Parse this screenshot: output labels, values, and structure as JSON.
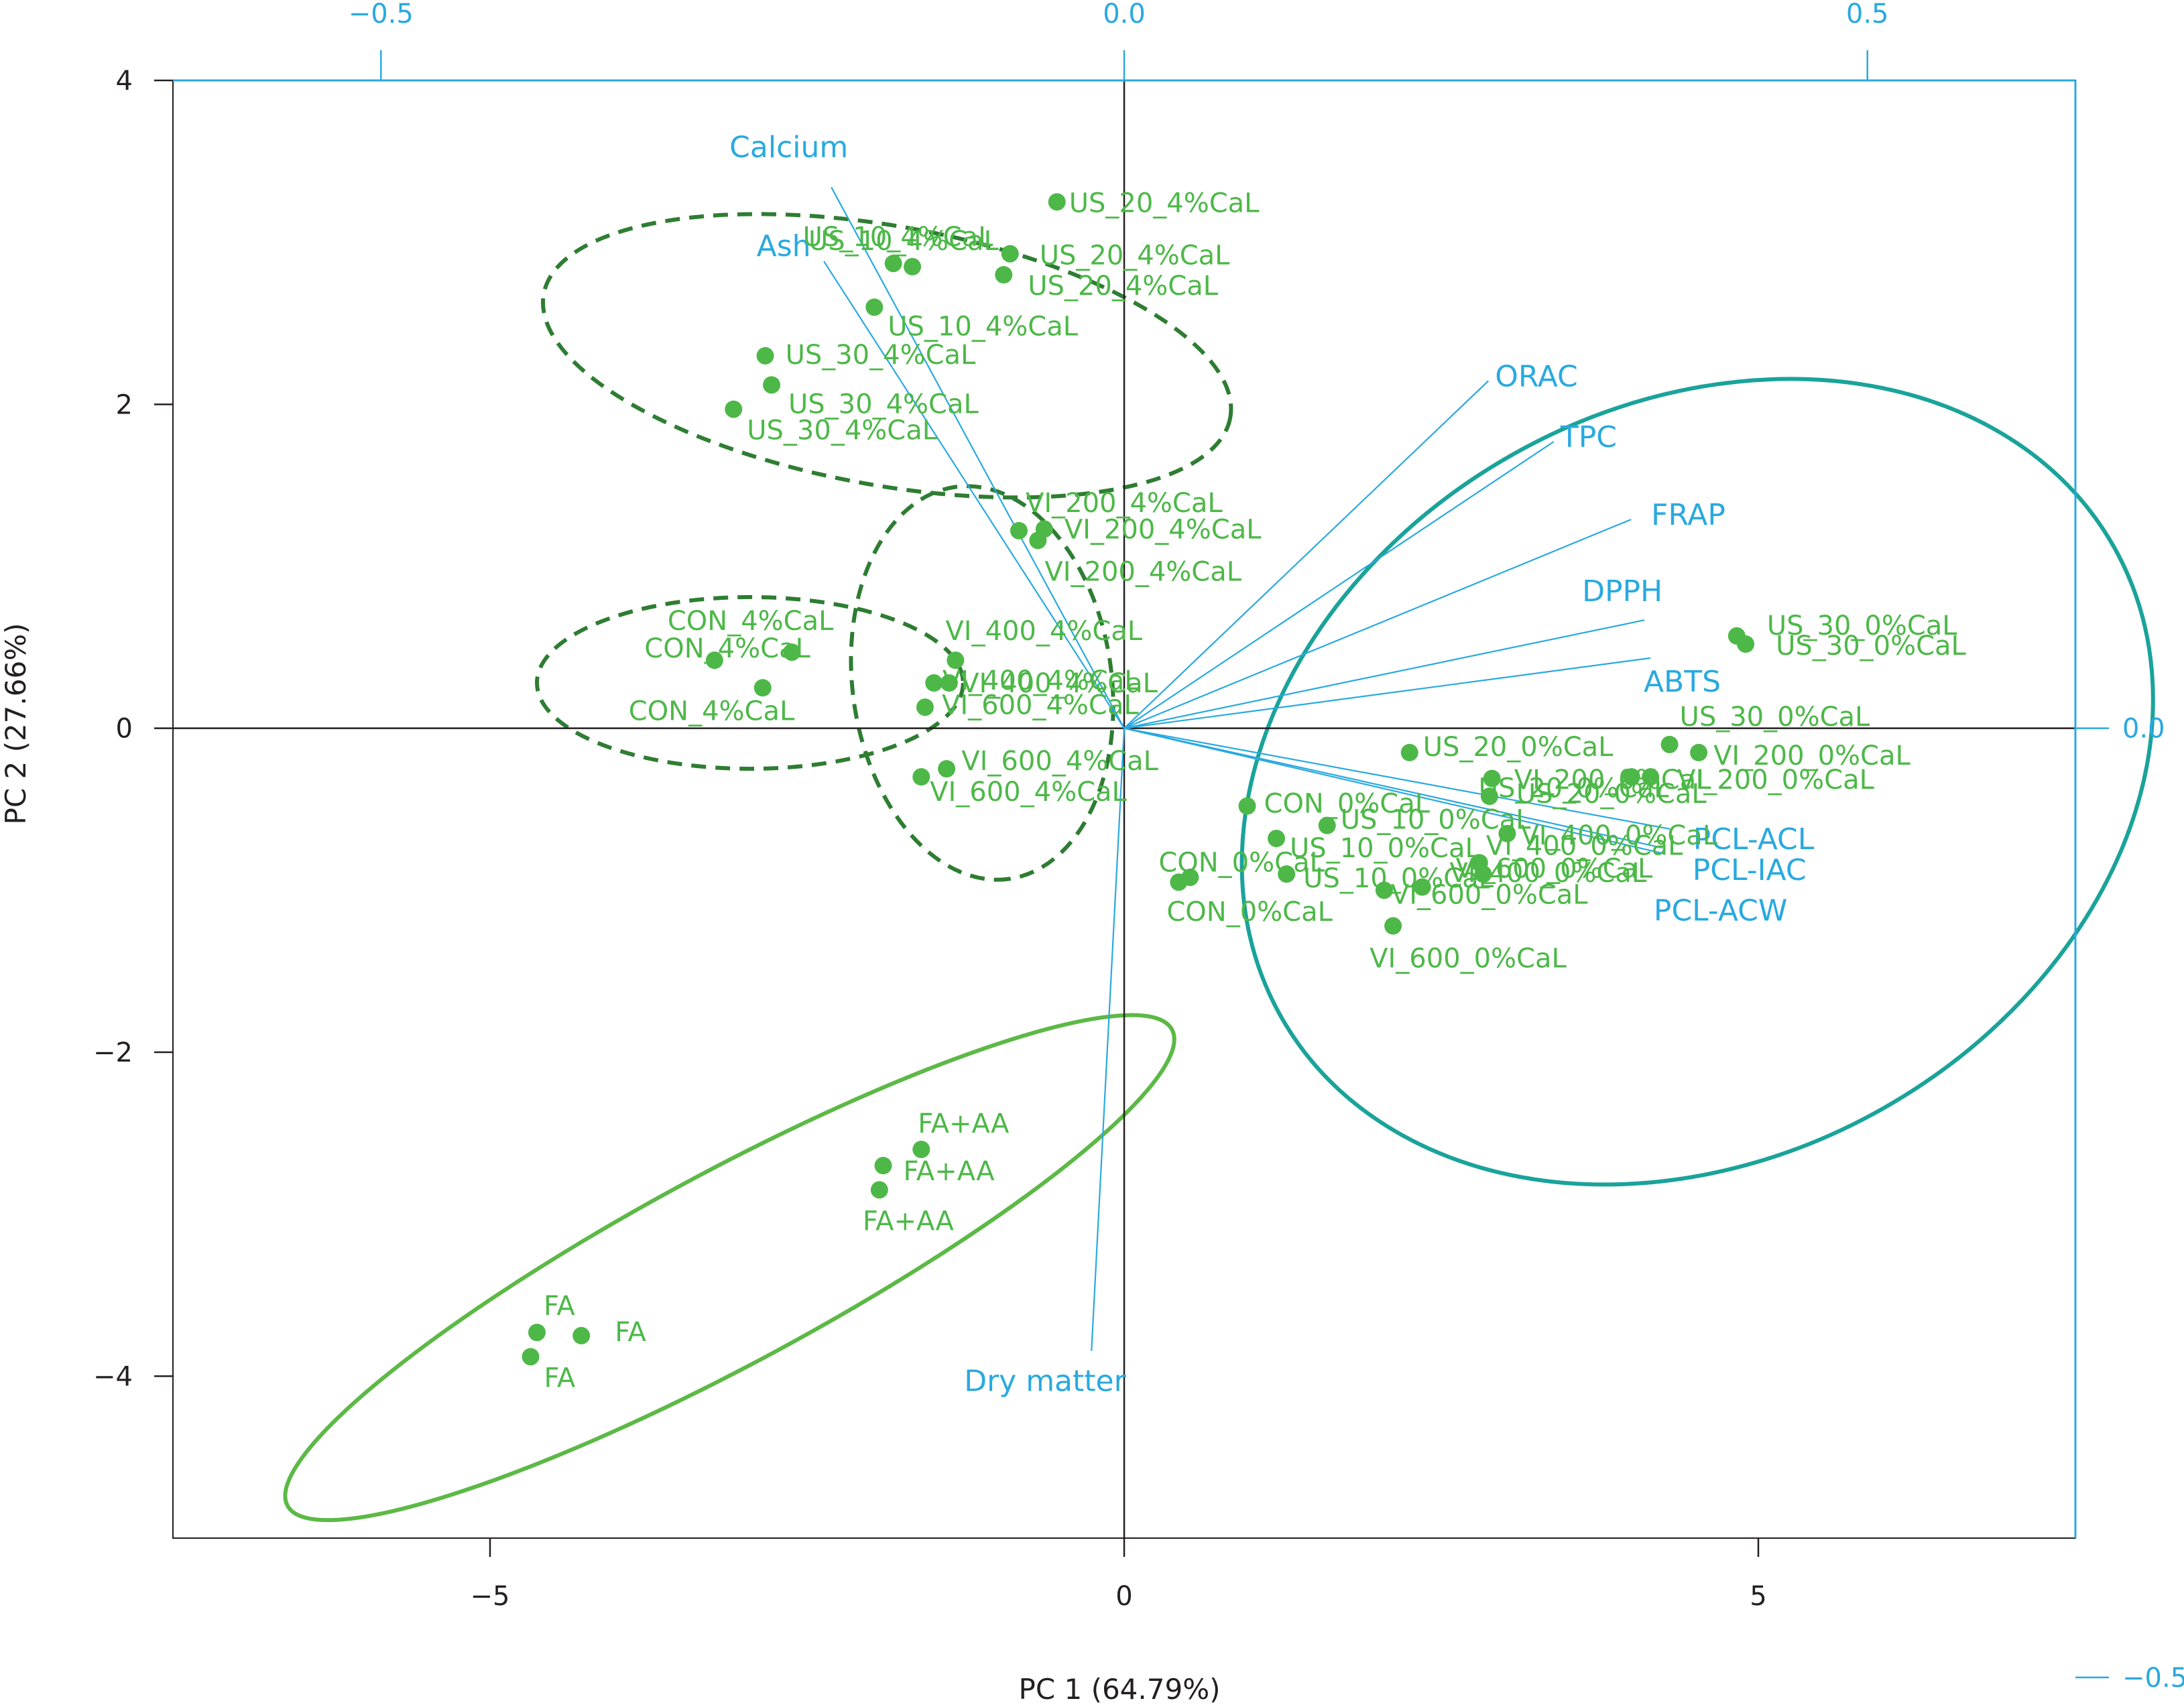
{
  "chart_data": {
    "type": "scatter",
    "subtype": "pca-biplot",
    "title": "",
    "xlabel": "PC 1 (64.79%)",
    "ylabel": "PC 2 (27.66%)",
    "xlim": [
      -7.5,
      7.5
    ],
    "ylim": [
      -5.0,
      4.0
    ],
    "x_ticks": [
      -5,
      0,
      5
    ],
    "y_ticks": [
      -4,
      -2,
      0,
      2,
      4
    ],
    "x_tick_labels": [
      "−5",
      "0",
      "5"
    ],
    "y_tick_labels": [
      "−4",
      "−2",
      "0",
      "2",
      "4"
    ],
    "loading_axes": {
      "top_ticks": [
        -0.5,
        0.0,
        0.5
      ],
      "top_tick_labels": [
        "−0.5",
        "0.0",
        "0.5"
      ],
      "right_ticks": [
        0.5,
        0.0,
        -0.5
      ],
      "right_tick_labels": [
        "0.5",
        "0.0",
        "−0.5"
      ],
      "scale": 11.72,
      "color": "#29a9e0"
    },
    "grid": false,
    "legend": "none",
    "colors": {
      "points": "#4db848",
      "loadings": "#29a9e0",
      "axes": "#231f20",
      "ellipse_teal": "#1aa39a",
      "ellipse_dark": "#2e7d32",
      "ellipse_light": "#5cb946"
    },
    "loadings": [
      {
        "name": "Ash",
        "x": -0.202,
        "y": 0.246
      },
      {
        "name": "Calcium",
        "x": -0.197,
        "y": 0.285
      },
      {
        "name": "ORAC",
        "x": 0.245,
        "y": 0.183
      },
      {
        "name": "TPC",
        "x": 0.289,
        "y": 0.151
      },
      {
        "name": "FRAP",
        "x": 0.341,
        "y": 0.11
      },
      {
        "name": "DPPH",
        "x": 0.35,
        "y": 0.057
      },
      {
        "name": "ABTS",
        "x": 0.354,
        "y": 0.037
      },
      {
        "name": "PCL-ACL",
        "x": 0.367,
        "y": -0.053
      },
      {
        "name": "PCL-IAC",
        "x": 0.362,
        "y": -0.063
      },
      {
        "name": "PCL-ACW",
        "x": 0.363,
        "y": -0.066
      },
      {
        "name": "Dry matter",
        "x": -0.022,
        "y": -0.328
      }
    ],
    "points": [
      {
        "label": "US_20_4%CaL",
        "x": -0.53,
        "y": 3.25
      },
      {
        "label": "US_20_4%CaL",
        "x": -0.9,
        "y": 2.93
      },
      {
        "label": "US_20_4%CaL",
        "x": -0.95,
        "y": 2.8
      },
      {
        "label": "US_10_4%CaL",
        "x": -1.82,
        "y": 2.87
      },
      {
        "label": "US_10_4%CaL",
        "x": -1.67,
        "y": 2.85
      },
      {
        "label": "US_10_4%CaL",
        "x": -1.97,
        "y": 2.6
      },
      {
        "label": "US_30_4%CaL",
        "x": -2.83,
        "y": 2.3
      },
      {
        "label": "US_30_4%CaL",
        "x": -2.78,
        "y": 2.12
      },
      {
        "label": "US_30_4%CaL",
        "x": -3.08,
        "y": 1.97
      },
      {
        "label": "VI_200_4%CaL",
        "x": -0.83,
        "y": 1.22
      },
      {
        "label": "VI_200_4%CaL",
        "x": -0.63,
        "y": 1.23
      },
      {
        "label": "VI_200_4%CaL",
        "x": -0.68,
        "y": 1.16
      },
      {
        "label": "VI_400_4%CaL",
        "x": -1.33,
        "y": 0.42
      },
      {
        "label": "VI_400_4%CaL",
        "x": -1.5,
        "y": 0.28
      },
      {
        "label": "VI_400_4%CaL",
        "x": -1.38,
        "y": 0.28
      },
      {
        "label": "VI_600_4%CaL",
        "x": -1.57,
        "y": 0.13
      },
      {
        "label": "VI_600_4%CaL",
        "x": -1.6,
        "y": -0.3
      },
      {
        "label": "VI_600_4%CaL",
        "x": -1.4,
        "y": -0.25
      },
      {
        "label": "CON_4%CaL",
        "x": -3.23,
        "y": 0.42
      },
      {
        "label": "CON_4%CaL",
        "x": -2.62,
        "y": 0.47
      },
      {
        "label": "CON_4%CaL",
        "x": -2.85,
        "y": 0.25
      },
      {
        "label": "US_30_0%CaL",
        "x": 4.83,
        "y": 0.57
      },
      {
        "label": "US_30_0%CaL",
        "x": 4.9,
        "y": 0.52
      },
      {
        "label": "US_30_0%CaL",
        "x": 4.3,
        "y": -0.1
      },
      {
        "label": "VI_200_0%CaL",
        "x": 4.53,
        "y": -0.15
      },
      {
        "label": "VI_200_0%CaL",
        "x": 4.15,
        "y": -0.3
      },
      {
        "label": "VI_200_0%CaL",
        "x": 4.0,
        "y": -0.3
      },
      {
        "label": "US_20_0%CaL",
        "x": 2.25,
        "y": -0.15
      },
      {
        "label": "US_20_0%CaL",
        "x": 2.9,
        "y": -0.31
      },
      {
        "label": "US_20_0%CaL",
        "x": 2.88,
        "y": -0.42
      },
      {
        "label": "CON_0%CaL",
        "x": 0.97,
        "y": -0.48
      },
      {
        "label": "CON_0%CaL",
        "x": 0.43,
        "y": -0.95
      },
      {
        "label": "CON_0%CaL",
        "x": 0.52,
        "y": -0.92
      },
      {
        "label": "US_10_0%CaL",
        "x": 1.6,
        "y": -0.6
      },
      {
        "label": "US_10_0%CaL",
        "x": 1.2,
        "y": -0.68
      },
      {
        "label": "US_10_0%CaL",
        "x": 1.28,
        "y": -0.9
      },
      {
        "label": "VI_400_0%CaL",
        "x": 3.02,
        "y": -0.65
      },
      {
        "label": "VI_400_0%CaL",
        "x": 2.8,
        "y": -0.83
      },
      {
        "label": "VI_400_0%CaL",
        "x": 2.83,
        "y": -0.9
      },
      {
        "label": "VI_600_0%CaL",
        "x": 2.05,
        "y": -1.0
      },
      {
        "label": "VI_600_0%CaL",
        "x": 2.35,
        "y": -0.98
      },
      {
        "label": "VI_600_0%CaL",
        "x": 2.12,
        "y": -1.22
      },
      {
        "label": "FA+AA",
        "x": -1.6,
        "y": -2.6
      },
      {
        "label": "FA+AA",
        "x": -1.9,
        "y": -2.7
      },
      {
        "label": "FA+AA",
        "x": -1.93,
        "y": -2.85
      },
      {
        "label": "FA",
        "x": -4.63,
        "y": -3.73
      },
      {
        "label": "FA",
        "x": -4.28,
        "y": -3.75
      },
      {
        "label": "FA",
        "x": -4.68,
        "y": -3.88
      }
    ],
    "groups": [
      {
        "group": "4%CaL US",
        "style": "dashed",
        "color": "#2e7d32",
        "cx": -1.87,
        "cy": 2.3,
        "rx": 2.75,
        "ry": 0.8,
        "angle_deg": -10.2
      },
      {
        "group": "4%CaL VI",
        "style": "dashed",
        "color": "#2e7d32",
        "cx": -1.12,
        "cy": 0.28,
        "rx": 1.56,
        "ry": 0.8,
        "angle_deg": -82.3
      },
      {
        "group": "CON_4%CaL",
        "style": "dashed",
        "color": "#2e7d32",
        "cx": -2.95,
        "cy": 0.28,
        "rx": 1.68,
        "ry": 0.53,
        "angle_deg": 0
      },
      {
        "group": "0%CaL",
        "style": "solid",
        "color": "#1aa39a",
        "cx": 4.52,
        "cy": -0.33,
        "rx": 3.77,
        "ry": 2.32,
        "angle_deg": 29.4
      },
      {
        "group": "FA / FA+AA",
        "style": "solid",
        "color": "#5cb946",
        "cx": -3.11,
        "cy": -3.33,
        "rx": 3.96,
        "ry": 0.59,
        "angle_deg": 28.3
      }
    ]
  }
}
